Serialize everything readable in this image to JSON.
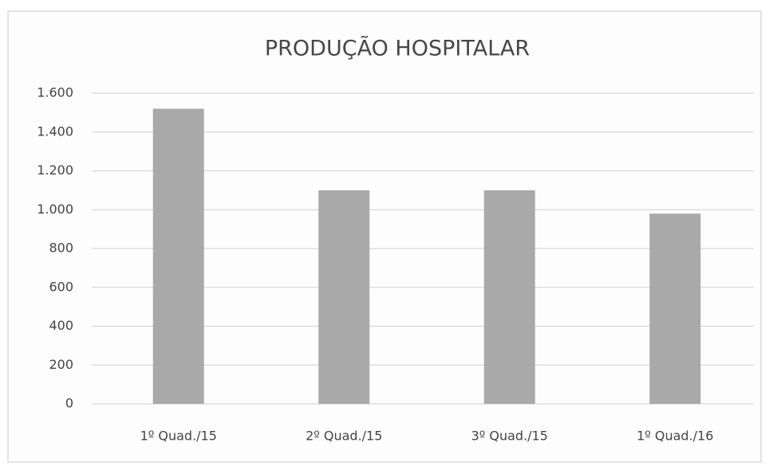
{
  "chart_data": {
    "type": "bar",
    "title": "PRODUÇÃO HOSPITALAR",
    "categories": [
      "1º Quad./15",
      "2º Quad./15",
      "3º Quad./15",
      "1º Quad./16"
    ],
    "values": [
      1520,
      1100,
      1100,
      980
    ],
    "color": "#a9a9a9",
    "ylim": [
      0,
      1600
    ],
    "yticks": [
      0,
      200,
      400,
      600,
      800,
      {
        "value": 1000,
        "label": "1.000"
      },
      {
        "value": 1200,
        "label": "1.200"
      },
      {
        "value": 1400,
        "label": "1.400"
      },
      {
        "value": 1600,
        "label": "1.600"
      }
    ],
    "grid": true
  }
}
